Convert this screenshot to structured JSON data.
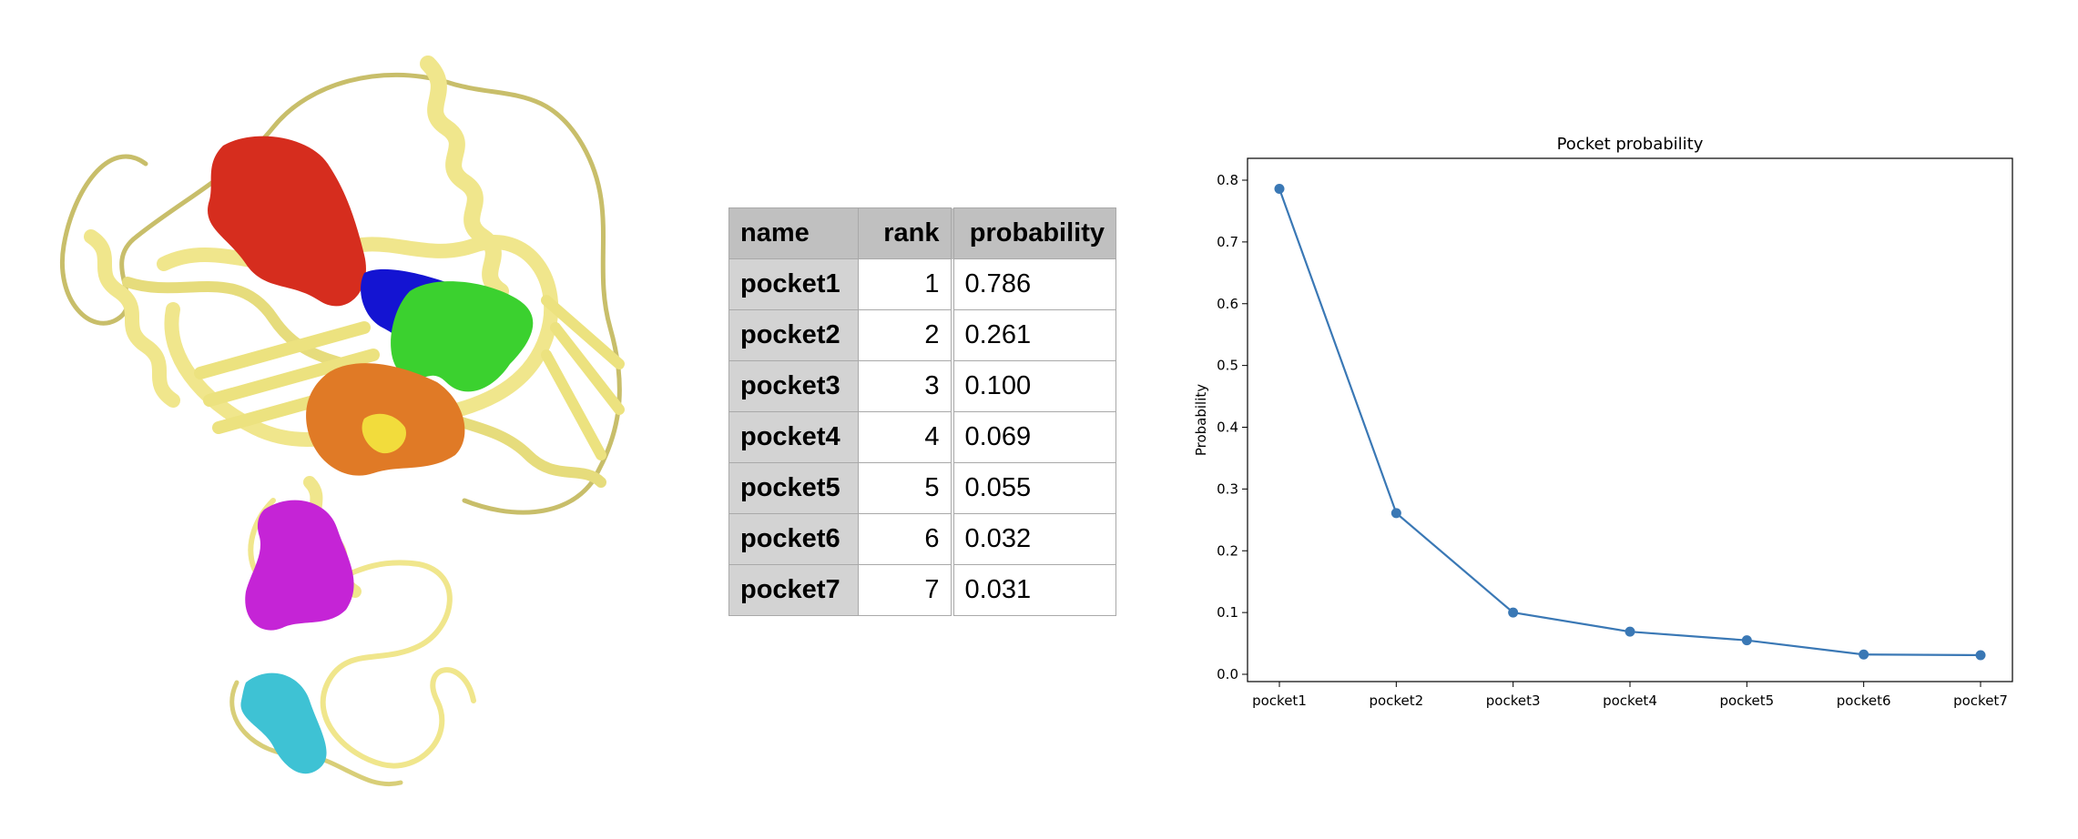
{
  "table": {
    "headers": {
      "name": "name",
      "rank": "rank",
      "probability": "probability"
    },
    "rows": [
      {
        "name": "pocket1",
        "rank": "1",
        "probability": "0.786"
      },
      {
        "name": "pocket2",
        "rank": "2",
        "probability": "0.261"
      },
      {
        "name": "pocket3",
        "rank": "3",
        "probability": "0.100"
      },
      {
        "name": "pocket4",
        "rank": "4",
        "probability": "0.069"
      },
      {
        "name": "pocket5",
        "rank": "5",
        "probability": "0.055"
      },
      {
        "name": "pocket6",
        "rank": "6",
        "probability": "0.032"
      },
      {
        "name": "pocket7",
        "rank": "7",
        "probability": "0.031"
      }
    ]
  },
  "colors": {
    "ribbon": "#f0e68c",
    "pocket1": "#d62d1e",
    "pocket2": "#1414d2",
    "pocket3": "#e07a26",
    "pocket4": "#3bd12f",
    "pocket5": "#c524d6",
    "pocket6": "#3ec2d4",
    "pocket7": "#f2dc3c",
    "line": "#3a78b5"
  },
  "chart_data": {
    "type": "line",
    "title": "Pocket probability",
    "xlabel": "",
    "ylabel": "Probability",
    "categories": [
      "pocket1",
      "pocket2",
      "pocket3",
      "pocket4",
      "pocket5",
      "pocket6",
      "pocket7"
    ],
    "values": [
      0.786,
      0.261,
      0.1,
      0.069,
      0.055,
      0.032,
      0.031
    ],
    "yticks": [
      "0.0",
      "0.1",
      "0.2",
      "0.3",
      "0.4",
      "0.5",
      "0.6",
      "0.7",
      "0.8"
    ],
    "ylim": [
      0,
      0.8
    ],
    "grid": false,
    "markers": true
  }
}
